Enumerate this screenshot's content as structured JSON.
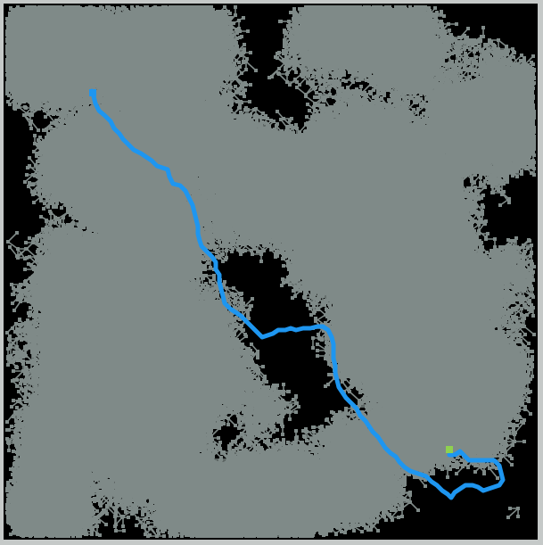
{
  "game": {
    "type": "random-maze-tree",
    "colors": {
      "background": "#000000",
      "frame": "#c5c9c8",
      "maze": "#7f8a88",
      "path": "#1e96f0",
      "goal": "#8fd14f"
    },
    "maze_seed": 20240611,
    "maze_roots": 42,
    "maze_depth": 16
  }
}
